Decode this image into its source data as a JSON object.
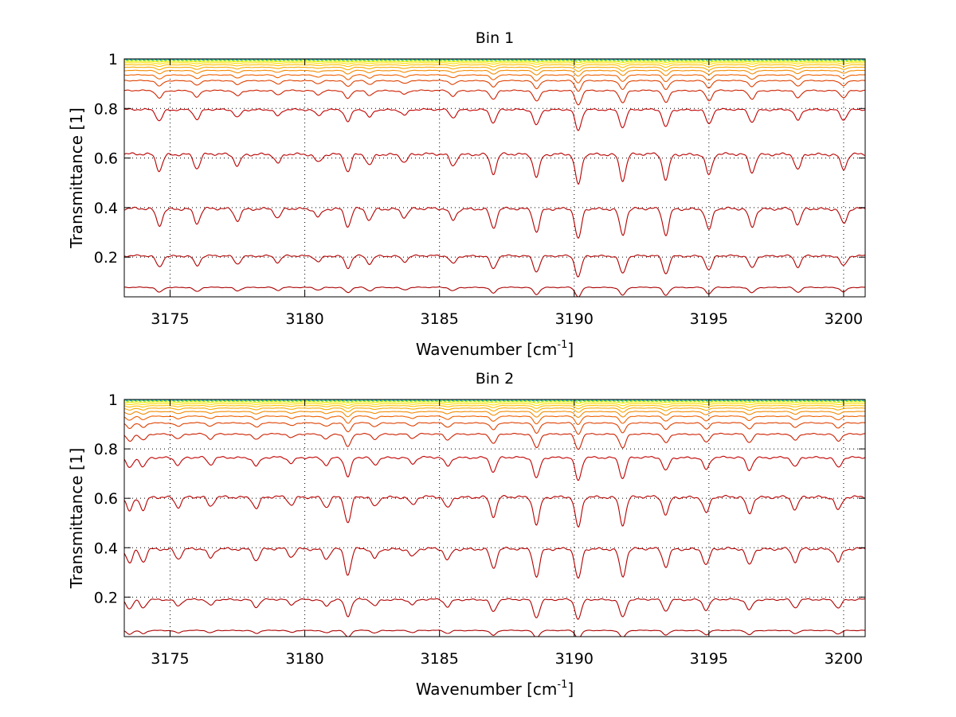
{
  "chart_data": [
    {
      "type": "line",
      "title": "Bin 1",
      "xlabel": "Wavenumber [cm",
      "xlabel_sup": "-1",
      "xlabel_suffix": "]",
      "ylabel": "Transmittance [1]",
      "xlim": [
        3173.3,
        3200.8
      ],
      "ylim": [
        0.04,
        1.0
      ],
      "xticks": [
        3175,
        3180,
        3185,
        3190,
        3195,
        3200
      ],
      "yticks": [
        0.2,
        0.4,
        0.6,
        0.8,
        1
      ],
      "xtick_labels": [
        "3175",
        "3180",
        "3185",
        "3190",
        "3195",
        "3200"
      ],
      "ytick_labels": [
        "0.2",
        "0.4",
        "0.6",
        "0.8",
        "1"
      ],
      "grid": "dotted",
      "absorption_lines": [
        {
          "x": 3174.6,
          "d": 0.5
        },
        {
          "x": 3176.0,
          "d": 0.45
        },
        {
          "x": 3177.5,
          "d": 0.35
        },
        {
          "x": 3179.0,
          "d": 0.3
        },
        {
          "x": 3180.5,
          "d": 0.25
        },
        {
          "x": 3181.6,
          "d": 0.55
        },
        {
          "x": 3182.4,
          "d": 0.35
        },
        {
          "x": 3183.7,
          "d": 0.25
        },
        {
          "x": 3185.5,
          "d": 0.35
        },
        {
          "x": 3187.0,
          "d": 0.6
        },
        {
          "x": 3188.6,
          "d": 0.7
        },
        {
          "x": 3190.15,
          "d": 0.95
        },
        {
          "x": 3191.8,
          "d": 0.8
        },
        {
          "x": 3193.4,
          "d": 0.8
        },
        {
          "x": 3195.0,
          "d": 0.65
        },
        {
          "x": 3196.6,
          "d": 0.55
        },
        {
          "x": 3198.3,
          "d": 0.5
        },
        {
          "x": 3200.0,
          "d": 0.45
        }
      ],
      "series": [
        {
          "baseline": 0.078,
          "color": "#aa0000"
        },
        {
          "baseline": 0.205,
          "color": "#b00000"
        },
        {
          "baseline": 0.395,
          "color": "#b30000"
        },
        {
          "baseline": 0.615,
          "color": "#b80000"
        },
        {
          "baseline": 0.795,
          "color": "#c00000"
        },
        {
          "baseline": 0.872,
          "color": "#cc2000"
        },
        {
          "baseline": 0.912,
          "color": "#dd4000"
        },
        {
          "baseline": 0.935,
          "color": "#ee6000"
        },
        {
          "baseline": 0.953,
          "color": "#f28a00"
        },
        {
          "baseline": 0.966,
          "color": "#f6aa00"
        },
        {
          "baseline": 0.976,
          "color": "#ffc000"
        },
        {
          "baseline": 0.984,
          "color": "#ffdd00"
        },
        {
          "baseline": 0.99,
          "color": "#eef000"
        },
        {
          "baseline": 0.995,
          "color": "#b0e020"
        },
        {
          "baseline": 0.998,
          "color": "#40d080"
        },
        {
          "baseline": 1.0,
          "color": "#00a0d0"
        }
      ]
    },
    {
      "type": "line",
      "title": "Bin 2",
      "xlabel": "Wavenumber [cm",
      "xlabel_sup": "-1",
      "xlabel_suffix": "]",
      "ylabel": "Transmittance [1]",
      "xlim": [
        3173.3,
        3200.8
      ],
      "ylim": [
        0.04,
        1.0
      ],
      "xticks": [
        3175,
        3180,
        3185,
        3190,
        3195,
        3200
      ],
      "yticks": [
        0.2,
        0.4,
        0.6,
        0.8,
        1
      ],
      "xtick_labels": [
        "3175",
        "3180",
        "3185",
        "3190",
        "3195",
        "3200"
      ],
      "ytick_labels": [
        "0.2",
        "0.4",
        "0.6",
        "0.8",
        "1"
      ],
      "grid": "dotted",
      "absorption_lines": [
        {
          "x": 3173.5,
          "d": 0.45
        },
        {
          "x": 3174.0,
          "d": 0.4
        },
        {
          "x": 3175.3,
          "d": 0.3
        },
        {
          "x": 3176.5,
          "d": 0.3
        },
        {
          "x": 3178.2,
          "d": 0.35
        },
        {
          "x": 3179.5,
          "d": 0.25
        },
        {
          "x": 3180.8,
          "d": 0.3
        },
        {
          "x": 3181.6,
          "d": 0.8
        },
        {
          "x": 3182.6,
          "d": 0.3
        },
        {
          "x": 3184.0,
          "d": 0.25
        },
        {
          "x": 3185.3,
          "d": 0.35
        },
        {
          "x": 3187.0,
          "d": 0.6
        },
        {
          "x": 3188.6,
          "d": 0.85
        },
        {
          "x": 3190.15,
          "d": 0.95
        },
        {
          "x": 3191.8,
          "d": 0.85
        },
        {
          "x": 3193.4,
          "d": 0.55
        },
        {
          "x": 3194.9,
          "d": 0.5
        },
        {
          "x": 3196.5,
          "d": 0.5
        },
        {
          "x": 3198.2,
          "d": 0.4
        },
        {
          "x": 3199.8,
          "d": 0.4
        }
      ],
      "series": [
        {
          "baseline": 0.065,
          "color": "#aa0000"
        },
        {
          "baseline": 0.19,
          "color": "#b00000"
        },
        {
          "baseline": 0.395,
          "color": "#b30000"
        },
        {
          "baseline": 0.605,
          "color": "#b80000"
        },
        {
          "baseline": 0.765,
          "color": "#c00000"
        },
        {
          "baseline": 0.86,
          "color": "#cc2000"
        },
        {
          "baseline": 0.905,
          "color": "#dd4000"
        },
        {
          "baseline": 0.932,
          "color": "#ee6000"
        },
        {
          "baseline": 0.951,
          "color": "#f28a00"
        },
        {
          "baseline": 0.965,
          "color": "#f6aa00"
        },
        {
          "baseline": 0.975,
          "color": "#ffc000"
        },
        {
          "baseline": 0.983,
          "color": "#ffdd00"
        },
        {
          "baseline": 0.99,
          "color": "#eef000"
        },
        {
          "baseline": 0.995,
          "color": "#b0e020"
        },
        {
          "baseline": 0.998,
          "color": "#40d080"
        },
        {
          "baseline": 1.0,
          "color": "#00a0d0"
        }
      ]
    }
  ]
}
